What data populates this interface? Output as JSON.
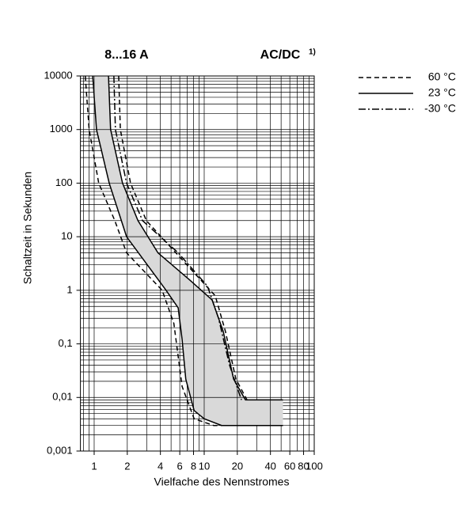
{
  "chart_data": {
    "type": "line",
    "title": "8...16 A",
    "subtitle": "AC/DC",
    "note": "1)",
    "xlabel": "Vielfache des Nennstromes",
    "ylabel": "Schaltzeit in Sekunden",
    "xscale": "log",
    "yscale": "log",
    "xlim": [
      0.75,
      100
    ],
    "ylim": [
      0.001,
      10000
    ],
    "xticks": [
      1,
      2,
      4,
      6,
      8,
      10,
      20,
      40,
      60,
      80,
      100
    ],
    "yticks": [
      {
        "value": 0.001,
        "label": "0,001"
      },
      {
        "value": 0.01,
        "label": "0,01"
      },
      {
        "value": 0.1,
        "label": "0,1"
      },
      1,
      10,
      100,
      1000,
      10000
    ],
    "grid": true,
    "minor_grid": true,
    "legend": "upper right",
    "series": [
      {
        "name": "60 °C",
        "color": "#000000",
        "linestyle": "dashed",
        "curves": [
          {
            "x": [
              0.83,
              0.9,
              1.1,
              1.54,
              1.97,
              4.15,
              5.3,
              6.3,
              8.1,
              12.2,
              17
            ],
            "values": [
              10000,
              1000,
              100,
              20,
              5,
              1,
              0.24,
              0.016,
              0.004,
              0.003,
              0.003
            ]
          },
          {
            "x": [
              1.67,
              1.73,
              2.14,
              2.98,
              7.4,
              12.6,
              15.6,
              19.4,
              24.5
            ],
            "values": [
              10000,
              1000,
              100,
              20,
              2.6,
              0.79,
              0.17,
              0.022,
              0.009
            ]
          }
        ]
      },
      {
        "name": "23 °C",
        "color": "#000000",
        "linestyle": "solid",
        "fill": "#d9d9d9",
        "curves": [
          {
            "x": [
              0.97,
              1.05,
              1.37,
              1.97,
              4.5,
              5.8,
              6.3,
              6.8,
              8.1,
              10,
              14.4,
              52
            ],
            "values": [
              10000,
              1000,
              100,
              10,
              1,
              0.47,
              0.12,
              0.022,
              0.0057,
              0.004,
              0.003,
              0.003
            ]
          },
          {
            "x": [
              1.35,
              1.41,
              1.81,
              2.5,
              3.8,
              7.4,
              11.8,
              14.9,
              18.5,
              23.7,
              52
            ],
            "values": [
              10000,
              1000,
              100,
              20,
              5,
              1.55,
              0.66,
              0.17,
              0.022,
              0.009,
              0.009
            ]
          }
        ]
      },
      {
        "name": "-30 °C",
        "color": "#000000",
        "linestyle": "dashdot",
        "curves": [
          {
            "x": [
              1.51,
              1.56,
              1.97,
              2.75,
              5.8,
              10.7,
              13.5,
              17,
              21.8
            ],
            "values": [
              10000,
              1000,
              100,
              20,
              5,
              1.2,
              0.3,
              0.04,
              0.009
            ]
          }
        ]
      }
    ]
  }
}
